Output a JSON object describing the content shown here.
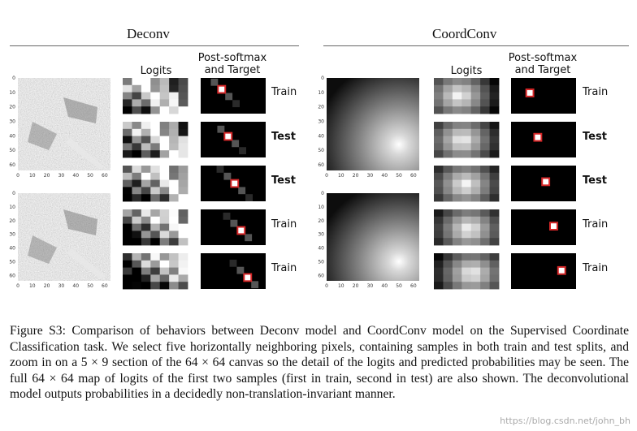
{
  "panels": {
    "left": {
      "title": "Deconv"
    },
    "right": {
      "title": "CoordConv"
    }
  },
  "columns": {
    "logits": "Logits",
    "post_softmax_line1": "Post-softmax",
    "post_softmax_line2": "and Target"
  },
  "rows": [
    {
      "label": "Train",
      "bold": false
    },
    {
      "label": "Test",
      "bold": true
    },
    {
      "label": "Test",
      "bold": true
    },
    {
      "label": "Train",
      "bold": false
    },
    {
      "label": "Train",
      "bold": false
    }
  ],
  "axis_ticks": {
    "y": [
      "0",
      "10",
      "20",
      "30",
      "40",
      "50",
      "60"
    ],
    "x": [
      "0",
      "10",
      "20",
      "30",
      "40",
      "50",
      "60"
    ]
  },
  "caption": "Figure S3: Comparison of behaviors between Deconv model and CoordConv model on the Supervised Coordinate Classification task. We select five horizontally neighboring pixels, containing samples in both train and test splits, and zoom in on a 5 × 9 section of the 64 × 64 canvas so the detail of the logits and predicted probabilities may be seen. The full 64 × 64 map of logits of the first two samples (first in train, second in test) are also shown. The deconvolutional model outputs probabilities in a decidedly non-translation-invariant manner.",
  "watermark": "https://blog.csdn.net/john_bh",
  "colors": {
    "target_box": "#d62728",
    "ink": "#111111",
    "rule": "#666666"
  }
}
